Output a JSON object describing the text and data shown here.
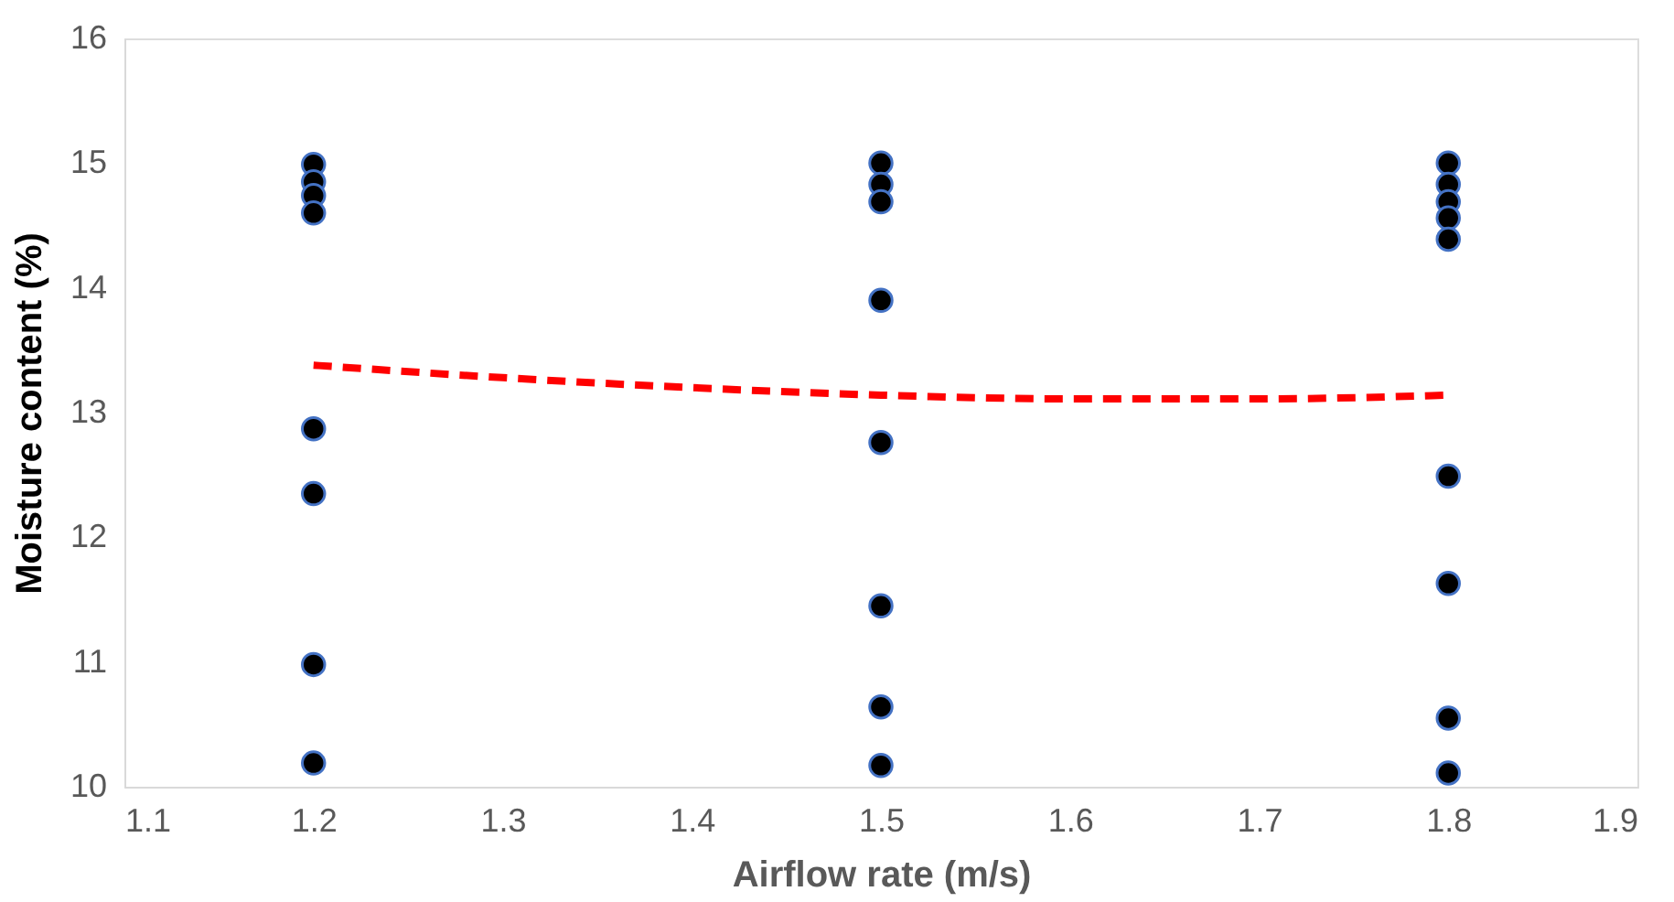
{
  "chart_data": {
    "type": "scatter",
    "xlabel": "Airflow rate (m/s)",
    "ylabel": "Moisture content (%)",
    "xlim": [
      1.1,
      1.9
    ],
    "xticks": [
      1.1,
      1.2,
      1.3,
      1.4,
      1.5,
      1.6,
      1.7,
      1.8,
      1.9
    ],
    "ylim": [
      10,
      16
    ],
    "yticks": [
      10,
      11,
      12,
      13,
      14,
      15,
      16
    ],
    "grid": false,
    "series": [
      {
        "marker": "circle",
        "color": "#000000",
        "x": [
          1.2,
          1.2,
          1.2,
          1.2,
          1.2,
          1.2,
          1.2,
          1.2,
          1.5,
          1.5,
          1.5,
          1.5,
          1.5,
          1.5,
          1.5,
          1.5,
          1.8,
          1.8,
          1.8,
          1.8,
          1.8,
          1.8,
          1.8,
          1.8,
          1.8
        ],
        "values": [
          14.99,
          14.85,
          14.74,
          14.6,
          12.87,
          12.35,
          10.98,
          10.19,
          15.0,
          14.83,
          14.69,
          13.9,
          12.76,
          11.45,
          10.64,
          10.17,
          15.0,
          14.83,
          14.69,
          14.56,
          14.39,
          12.49,
          11.63,
          10.55,
          10.11
        ]
      },
      {
        "type": "line",
        "color": "#ff0000",
        "line_style": "dashed",
        "x": [
          1.2,
          1.3,
          1.4,
          1.5,
          1.6,
          1.7,
          1.8
        ],
        "values": [
          13.38,
          13.28,
          13.2,
          13.14,
          13.11,
          13.11,
          13.14
        ]
      }
    ]
  }
}
